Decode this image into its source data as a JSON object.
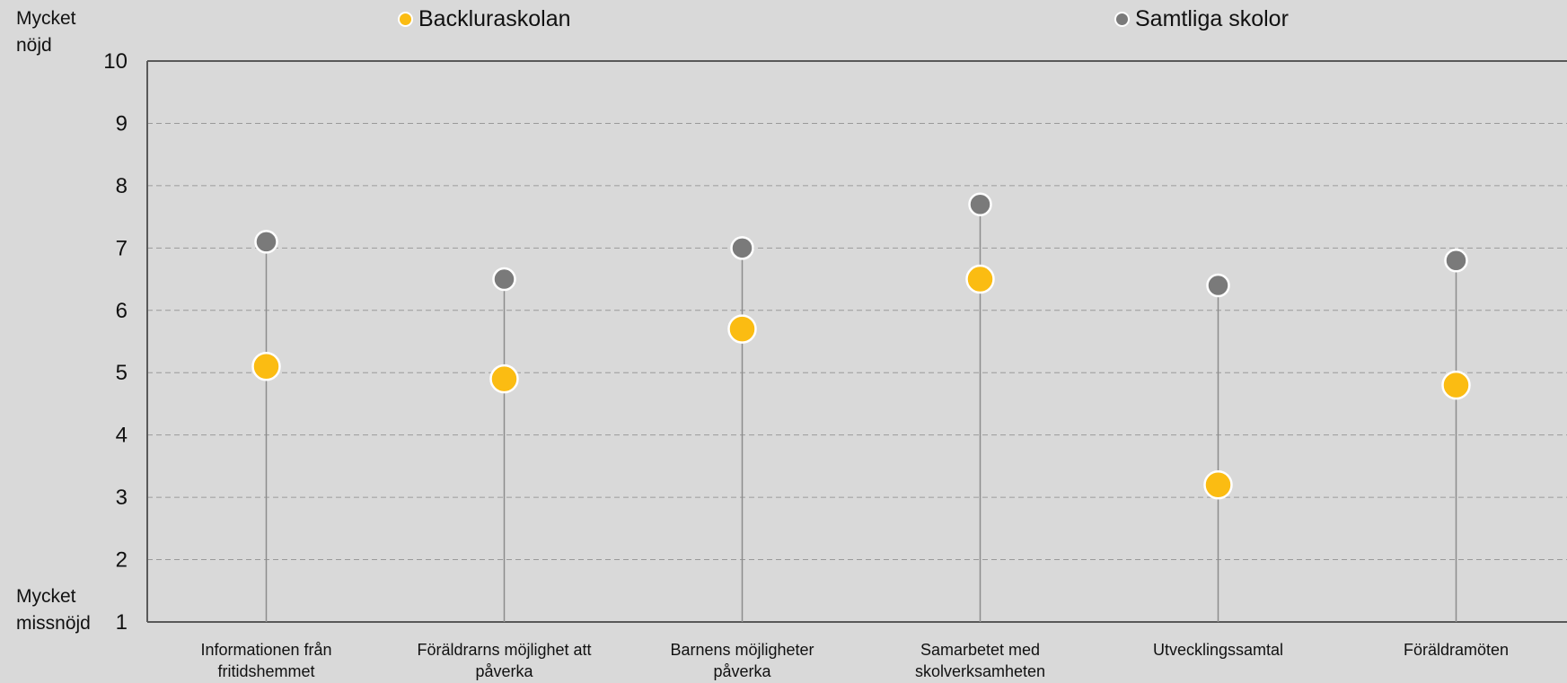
{
  "chart_data": {
    "type": "scatter",
    "categories": [
      [
        "Informationen från",
        "fritidshemmet"
      ],
      [
        "Föräldrarns möjlighet att",
        "påverka"
      ],
      [
        "Barnens möjligheter",
        "påverka"
      ],
      [
        "Samarbetet med",
        "skolverksamheten"
      ],
      [
        "Utvecklingssamtal"
      ],
      [
        "Föräldramöten"
      ]
    ],
    "series": [
      {
        "name": "Backluraskolan",
        "values": [
          5.1,
          4.9,
          5.7,
          6.5,
          3.2,
          4.8
        ]
      },
      {
        "name": "Samtliga skolor",
        "values": [
          7.1,
          6.5,
          7.0,
          7.7,
          6.4,
          6.8
        ]
      }
    ],
    "ylim": [
      1,
      10
    ],
    "yticks": [
      "1",
      "2",
      "3",
      "4",
      "5",
      "6",
      "7",
      "8",
      "9",
      "10"
    ],
    "ylabel_top": "Mycket nöjd",
    "ylabel_bottom": "Mycket missnöjd",
    "grid": true,
    "legend_position": "top",
    "colors": {
      "background": "#d9d9d9",
      "backluraskolan": "#fbbc12",
      "samtliga": "#7a7a7a",
      "stem": "#8c8c8c",
      "grid": "#9a9a9a",
      "axis": "#595959"
    }
  }
}
